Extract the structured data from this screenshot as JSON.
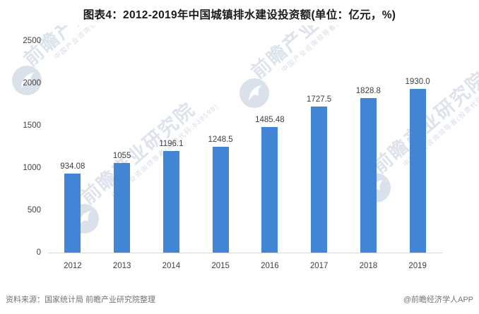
{
  "page": {
    "title": "图表4：2012-2019年中国城镇排水建设投资额(单位：亿元，%)"
  },
  "chart_data": {
    "type": "bar",
    "title": "图表4：2012-2019年中国城镇排水建设投资额(单位：亿元，%)",
    "unit": "亿元",
    "categories": [
      "2012",
      "2013",
      "2014",
      "2015",
      "2016",
      "2017",
      "2018",
      "2019"
    ],
    "values": [
      934.08,
      1055,
      1196.1,
      1248.5,
      1485.48,
      1727.5,
      1828.8,
      1930.0
    ],
    "value_labels": [
      "934.08",
      "1055",
      "1196.1",
      "1248.5",
      "1485.48",
      "1727.5",
      "1828.8",
      "1930.0"
    ],
    "xlabel": "",
    "ylabel": "",
    "ylim": [
      0,
      2500
    ],
    "yticks": [
      0,
      500,
      1000,
      1500,
      2000,
      2500
    ],
    "grid": false,
    "legend": null,
    "bar_color": "#4285d5"
  },
  "watermark": {
    "text": "前瞻产业研究院",
    "subtext": "中国产业咨询领导者(股票代码:839599)"
  },
  "footer": {
    "source": "资料来源：国家统计局 前瞻产业研究院整理",
    "credit": "@前瞻经济学人APP"
  },
  "colors": {
    "bar": "#4285d5",
    "axis_line": "#d9d9d9",
    "label_text": "#404040",
    "title_text": "#1a1a1a",
    "footer_text": "#737373",
    "watermark": "#9aacc7"
  }
}
